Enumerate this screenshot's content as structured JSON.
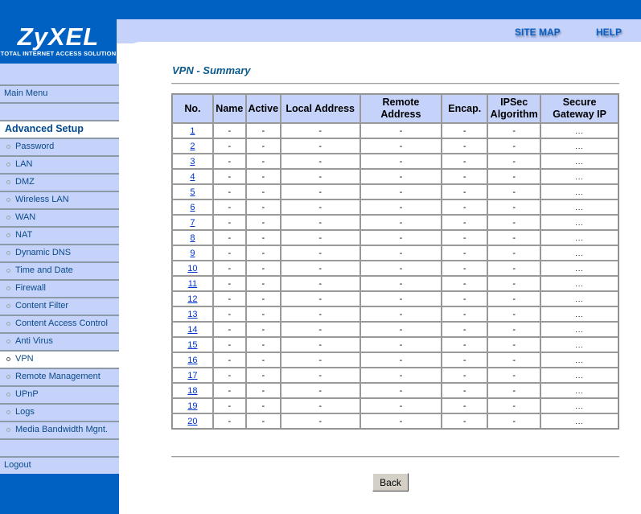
{
  "logo": {
    "brand": "ZyXEL",
    "tagline": "TOTAL INTERNET ACCESS SOLUTION"
  },
  "header": {
    "site_map": "SITE MAP",
    "help": "HELP"
  },
  "sidebar": {
    "main_menu": "Main Menu",
    "section": "Advanced Setup",
    "items": [
      "Password",
      "LAN",
      "DMZ",
      "Wireless LAN",
      "WAN",
      "NAT",
      "Dynamic DNS",
      "Time and Date",
      "Firewall",
      "Content Filter",
      "Content Access Control",
      "Anti Virus",
      "VPN",
      "Remote Management",
      "UPnP",
      "Logs",
      "Media Bandwidth Mgnt."
    ],
    "active": "VPN",
    "logout": "Logout"
  },
  "page": {
    "title": "VPN - Summary",
    "back_label": "Back"
  },
  "table": {
    "columns": [
      "No.",
      "Name",
      "Active",
      "Local Address",
      "Remote Address",
      "Encap.",
      "IPSec Algorithm",
      "Secure Gateway IP"
    ],
    "rows": [
      [
        "1",
        "-",
        "-",
        "-",
        "-",
        "-",
        "-",
        "..."
      ],
      [
        "2",
        "-",
        "-",
        "-",
        "-",
        "-",
        "-",
        "..."
      ],
      [
        "3",
        "-",
        "-",
        "-",
        "-",
        "-",
        "-",
        "..."
      ],
      [
        "4",
        "-",
        "-",
        "-",
        "-",
        "-",
        "-",
        "..."
      ],
      [
        "5",
        "-",
        "-",
        "-",
        "-",
        "-",
        "-",
        "..."
      ],
      [
        "6",
        "-",
        "-",
        "-",
        "-",
        "-",
        "-",
        "..."
      ],
      [
        "7",
        "-",
        "-",
        "-",
        "-",
        "-",
        "-",
        "..."
      ],
      [
        "8",
        "-",
        "-",
        "-",
        "-",
        "-",
        "-",
        "..."
      ],
      [
        "9",
        "-",
        "-",
        "-",
        "-",
        "-",
        "-",
        "..."
      ],
      [
        "10",
        "-",
        "-",
        "-",
        "-",
        "-",
        "-",
        "..."
      ],
      [
        "11",
        "-",
        "-",
        "-",
        "-",
        "-",
        "-",
        "..."
      ],
      [
        "12",
        "-",
        "-",
        "-",
        "-",
        "-",
        "-",
        "..."
      ],
      [
        "13",
        "-",
        "-",
        "-",
        "-",
        "-",
        "-",
        "..."
      ],
      [
        "14",
        "-",
        "-",
        "-",
        "-",
        "-",
        "-",
        "..."
      ],
      [
        "15",
        "-",
        "-",
        "-",
        "-",
        "-",
        "-",
        "..."
      ],
      [
        "16",
        "-",
        "-",
        "-",
        "-",
        "-",
        "-",
        "..."
      ],
      [
        "17",
        "-",
        "-",
        "-",
        "-",
        "-",
        "-",
        "..."
      ],
      [
        "18",
        "-",
        "-",
        "-",
        "-",
        "-",
        "-",
        "..."
      ],
      [
        "19",
        "-",
        "-",
        "-",
        "-",
        "-",
        "-",
        "..."
      ],
      [
        "20",
        "-",
        "-",
        "-",
        "-",
        "-",
        "-",
        "..."
      ]
    ]
  },
  "colors": {
    "brand_blue": "#0061c2",
    "panel": "#c5d3fb"
  }
}
